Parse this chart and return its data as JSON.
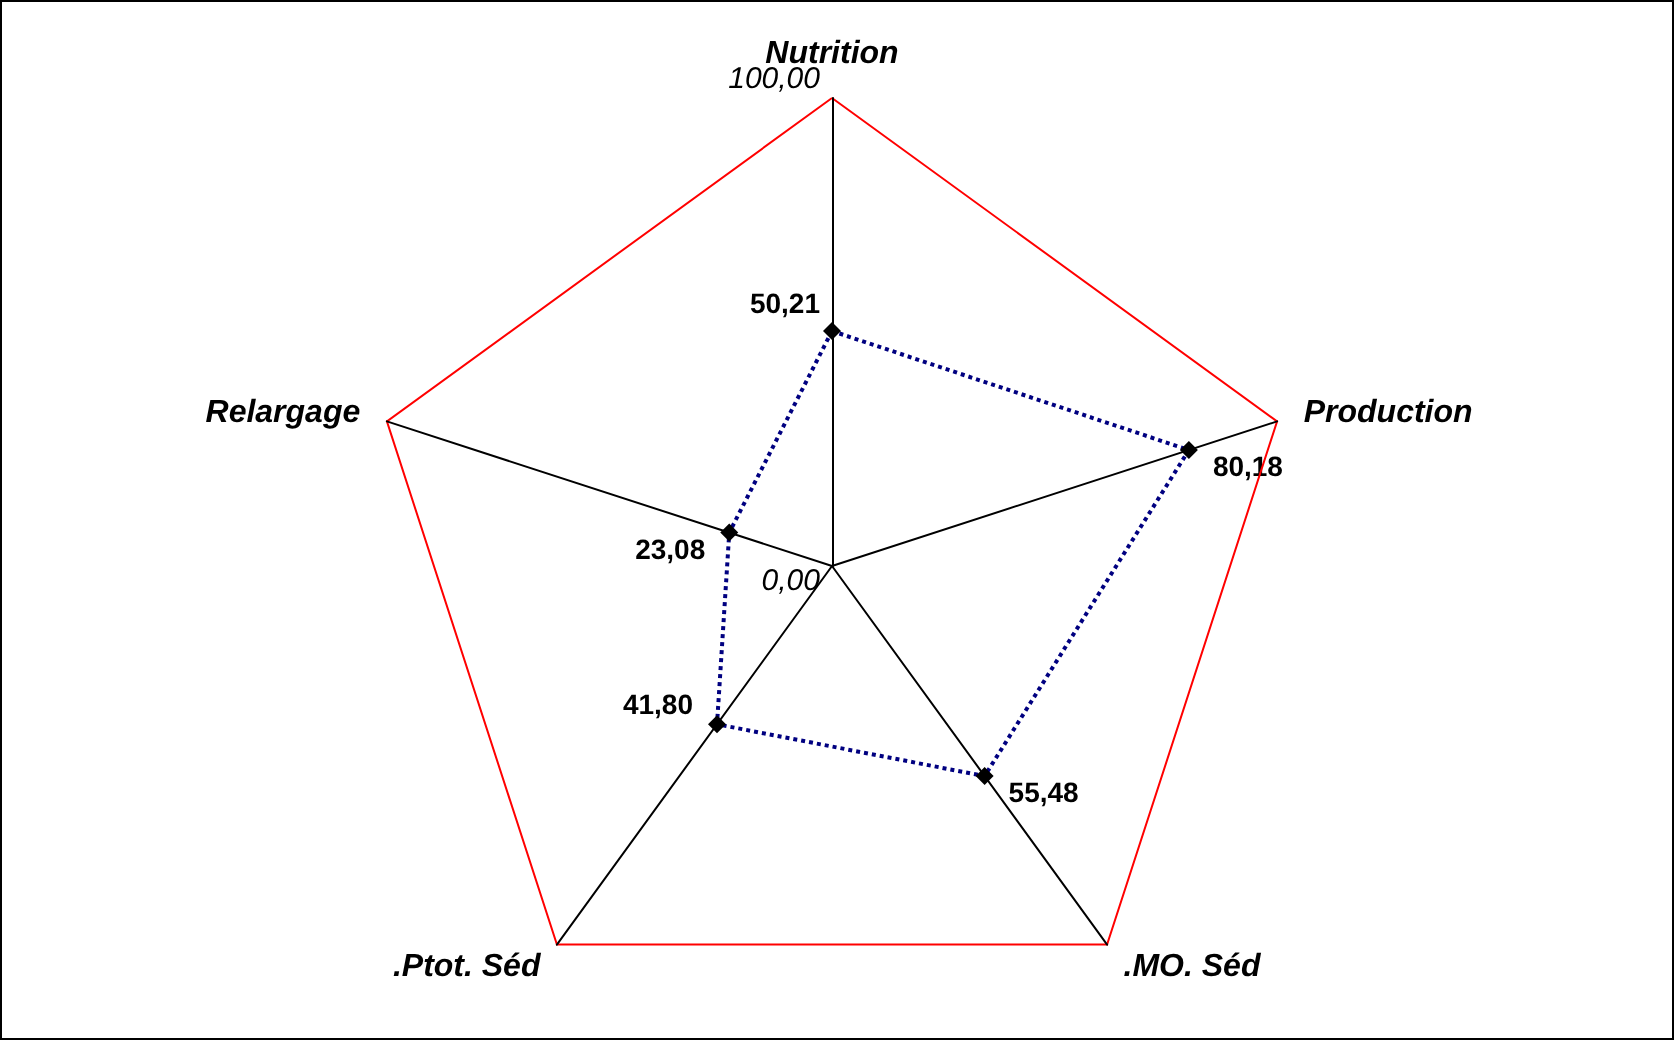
{
  "chart_data": {
    "type": "radar",
    "categories": [
      "Nutrition",
      "Production",
      ".MO. Séd",
      ".Ptot. Séd",
      "Relargage"
    ],
    "series": [
      {
        "color": "#000080",
        "values": [
          50.21,
          80.18,
          55.48,
          41.8,
          23.08
        ],
        "value_labels": [
          "50,21",
          "80,18",
          "55,48",
          "41,80",
          "23,08"
        ]
      }
    ],
    "ylim": [
      0,
      100
    ],
    "yticks": [
      {
        "value": 0,
        "label": "0,00"
      },
      {
        "value": 100,
        "label": "100,00"
      }
    ],
    "grid": true,
    "marker": "diamond",
    "line_style": "dotted"
  }
}
